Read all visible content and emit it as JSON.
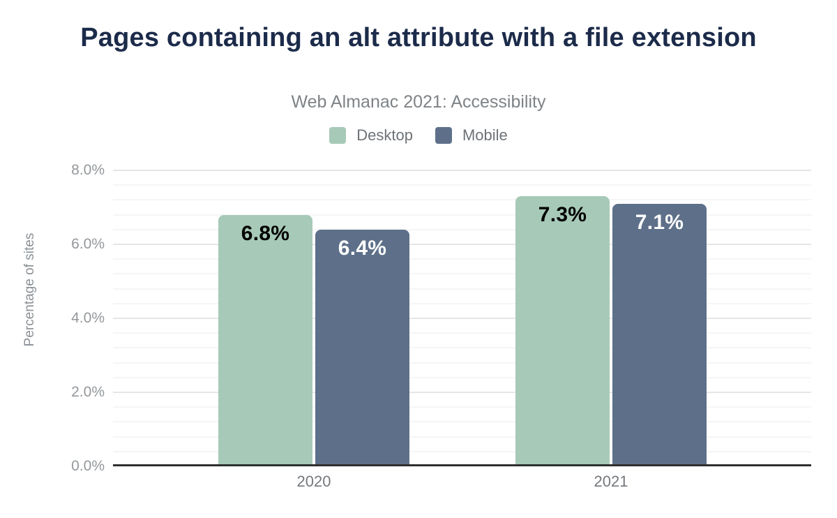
{
  "title": "Pages containing an alt attribute with a file extension",
  "subtitle": "Web Almanac 2021: Accessibility",
  "y_axis": {
    "title": "Percentage of sites",
    "tick_labels": [
      "8.0%",
      "6.0%",
      "4.0%",
      "2.0%",
      "0.0%"
    ],
    "tick_values": [
      8,
      6,
      4,
      2,
      0
    ],
    "max": 8,
    "major_step": 2,
    "minor_step": 0.4
  },
  "chart_data": {
    "type": "bar",
    "title": "Pages containing an alt attribute with a file extension",
    "subtitle": "Web Almanac 2021: Accessibility",
    "categories": [
      "2020",
      "2021"
    ],
    "series": [
      {
        "name": "Desktop",
        "color": "#a7c9b8",
        "data_label_color": "#000000",
        "values": [
          6.8,
          7.3
        ],
        "data_labels": [
          "6.8%",
          "7.3%"
        ]
      },
      {
        "name": "Mobile",
        "color": "#5e7089",
        "data_label_color": "#ffffff",
        "values": [
          6.4,
          7.1
        ],
        "data_labels": [
          "6.4%",
          "7.1%"
        ]
      }
    ],
    "xlabel": "",
    "ylabel": "Percentage of sites",
    "ylim": [
      0,
      8
    ],
    "grid": true,
    "minor_grid": true,
    "legend_position": "top-center"
  }
}
